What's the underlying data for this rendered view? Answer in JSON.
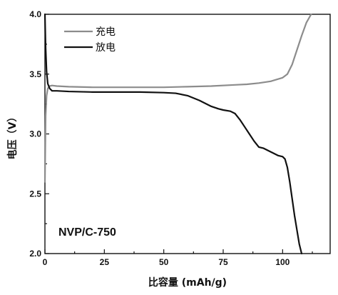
{
  "chart_data": {
    "type": "line",
    "xlabel": "比容量 (mAh/g)",
    "ylabel": "电压（V）",
    "xlim": [
      0,
      120
    ],
    "ylim": [
      2.0,
      4.0
    ],
    "xticks": [
      0,
      25,
      50,
      75,
      100
    ],
    "yticks": [
      2.0,
      2.5,
      3.0,
      3.5,
      4.0
    ],
    "xtick_labels": [
      "0",
      "25",
      "50",
      "75",
      "100"
    ],
    "ytick_labels": [
      "2.0",
      "2.5",
      "3.0",
      "3.5",
      "4.0"
    ],
    "grid": false,
    "legend_position": "top-left",
    "annotation": "NVP/C-750",
    "series": [
      {
        "name": "充电",
        "color": "#8c8c8c",
        "x": [
          0,
          0.3,
          0.7,
          1.2,
          2,
          3,
          5,
          10,
          20,
          30,
          40,
          50,
          60,
          70,
          80,
          85,
          90,
          95,
          100,
          102,
          104,
          106,
          108,
          110,
          112
        ],
        "y": [
          2.6,
          3.15,
          3.32,
          3.38,
          3.4,
          3.405,
          3.4,
          3.395,
          3.39,
          3.39,
          3.39,
          3.39,
          3.395,
          3.4,
          3.41,
          3.415,
          3.425,
          3.44,
          3.47,
          3.5,
          3.58,
          3.7,
          3.82,
          3.93,
          4.0
        ]
      },
      {
        "name": "放电",
        "color": "#111111",
        "x": [
          0,
          0.3,
          0.7,
          1.2,
          2,
          3,
          5,
          10,
          20,
          30,
          40,
          50,
          55,
          60,
          65,
          70,
          73,
          75,
          78,
          80,
          82,
          84,
          86,
          88,
          90,
          92,
          95,
          98,
          100,
          101,
          102,
          103,
          104,
          105,
          106,
          107,
          108
        ],
        "y": [
          4.0,
          3.72,
          3.52,
          3.42,
          3.38,
          3.36,
          3.36,
          3.355,
          3.35,
          3.35,
          3.35,
          3.345,
          3.34,
          3.32,
          3.28,
          3.23,
          3.21,
          3.2,
          3.19,
          3.17,
          3.12,
          3.06,
          3.0,
          2.94,
          2.89,
          2.88,
          2.85,
          2.82,
          2.81,
          2.79,
          2.72,
          2.6,
          2.46,
          2.32,
          2.2,
          2.08,
          2.0
        ]
      }
    ]
  }
}
